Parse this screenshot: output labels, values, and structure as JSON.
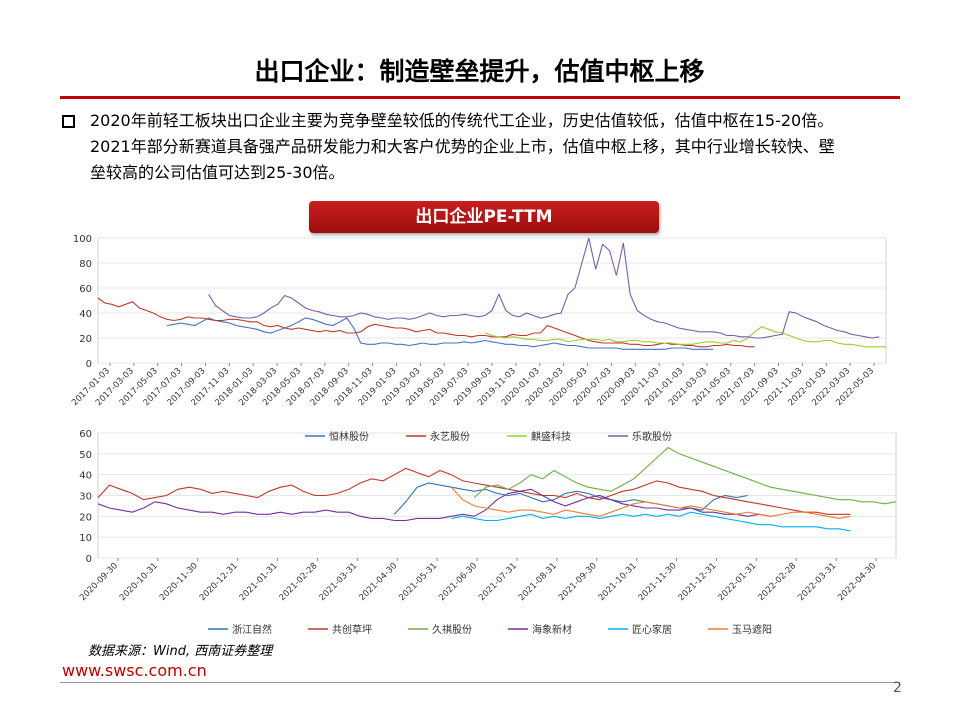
{
  "page": {
    "title": "出口企业：制造壁垒提升，估值中枢上移",
    "bullet_line1": "2020年前轻工板块出口企业主要为竞争壁垒较低的传统代工企业，历史估值较低，估值中枢在15-20倍。",
    "bullet_line2": "2021年部分新赛道具备强产品研发能力和大客户优势的企业上市，估值中枢上移，其中行业增长较快、壁",
    "bullet_line3": "垒较高的公司估值可达到25-30倍。",
    "badge": "出口企业PE-TTM",
    "source": "数据来源：Wind, 西南证券整理",
    "website": "www.swsc.com.cn",
    "page_number": "2"
  },
  "chart_data": [
    {
      "type": "line",
      "title": "",
      "ylim": [
        0,
        100
      ],
      "yticks": [
        "0",
        "20",
        "40",
        "60",
        "80",
        "100"
      ],
      "xticks": [
        "2017-01-03",
        "2017-03-03",
        "2017-05-03",
        "2017-07-03",
        "2017-09-03",
        "2017-11-03",
        "2018-01-03",
        "2018-03-03",
        "2018-05-03",
        "2018-07-03",
        "2018-09-03",
        "2018-11-03",
        "2019-01-03",
        "2019-03-03",
        "2019-05-03",
        "2019-07-03",
        "2019-09-03",
        "2019-11-03",
        "2020-01-03",
        "2020-03-03",
        "2020-05-03",
        "2020-07-03",
        "2020-09-03",
        "2020-11-03",
        "2021-01-03",
        "2021-03-03",
        "2021-05-03",
        "2021-07-03",
        "2021-09-03",
        "2021-11-03",
        "2022-01-03",
        "2022-03-03",
        "2022-05-03"
      ],
      "legend": "bottom",
      "series": [
        {
          "name": "恒林股份",
          "color": "#4472c4",
          "start": 10,
          "values": [
            30,
            31,
            32,
            31,
            30,
            33,
            36,
            34,
            33,
            32,
            30,
            29,
            28,
            27,
            25,
            24,
            26,
            28,
            30,
            33,
            36,
            35,
            33,
            31,
            30,
            33,
            36,
            28,
            16,
            15,
            15,
            16,
            16,
            15,
            15,
            14,
            15,
            16,
            15,
            15,
            16,
            16,
            16,
            17,
            16,
            17,
            18,
            17,
            16,
            15,
            15,
            14,
            14,
            13,
            14,
            15,
            16,
            15,
            14,
            14,
            13,
            12,
            12,
            12,
            12,
            12,
            11,
            11,
            11,
            11,
            11,
            11,
            11,
            12,
            12,
            12,
            11,
            11,
            11,
            11
          ]
        },
        {
          "name": "永艺股份",
          "color": "#c0392b",
          "start": 0,
          "values": [
            52,
            48,
            47,
            45,
            47,
            49,
            44,
            42,
            40,
            37,
            35,
            34,
            35,
            37,
            36,
            36,
            35,
            34,
            34,
            35,
            35,
            34,
            33,
            33,
            30,
            29,
            30,
            28,
            27,
            28,
            27,
            26,
            25,
            26,
            25,
            26,
            24,
            24,
            25,
            29,
            31,
            30,
            29,
            28,
            28,
            27,
            25,
            26,
            27,
            24,
            24,
            23,
            22,
            22,
            21,
            22,
            22,
            21,
            21,
            21,
            23,
            22,
            22,
            24,
            24,
            30,
            28,
            26,
            24,
            22,
            20,
            18,
            17,
            16,
            16,
            16,
            16,
            15,
            15,
            14,
            14,
            15,
            16,
            15,
            15,
            14,
            14,
            13,
            13,
            14,
            14,
            15,
            14,
            14,
            13,
            13
          ]
        },
        {
          "name": "麒盛科技",
          "color": "#9acd32",
          "start": 56,
          "values": [
            24,
            22,
            21,
            20,
            21,
            20,
            19,
            19,
            18,
            18,
            19,
            19,
            17,
            18,
            19,
            19,
            19,
            18,
            19,
            17,
            17,
            18,
            18,
            17,
            17,
            16,
            16,
            16,
            15,
            15,
            15,
            16,
            17,
            17,
            16,
            16,
            18,
            17,
            20,
            25,
            29,
            27,
            25,
            24,
            22,
            20,
            18,
            17,
            17,
            18,
            18,
            16,
            15,
            15,
            14,
            13,
            13,
            13,
            13
          ]
        },
        {
          "name": "乐歌股份",
          "color": "#7b5ea7",
          "start": 16,
          "values": [
            55,
            46,
            42,
            38,
            37,
            36,
            36,
            37,
            40,
            44,
            47,
            54,
            52,
            48,
            44,
            42,
            41,
            39,
            38,
            37,
            37,
            38,
            40,
            39,
            37,
            36,
            35,
            36,
            36,
            35,
            36,
            38,
            40,
            38,
            37,
            38,
            38,
            39,
            38,
            37,
            38,
            42,
            55,
            42,
            38,
            37,
            40,
            38,
            36,
            37,
            39,
            40,
            55,
            60,
            80,
            100,
            75,
            95,
            90,
            70,
            96,
            55,
            42,
            38,
            35,
            33,
            32,
            30,
            28,
            27,
            26,
            25,
            25,
            25,
            24,
            22,
            22,
            21,
            21,
            20,
            20,
            21,
            22,
            23,
            41,
            40,
            37,
            35,
            33,
            30,
            28,
            26,
            25,
            23,
            22,
            21,
            20,
            21
          ]
        }
      ]
    },
    {
      "type": "line",
      "title": "",
      "ylim": [
        0,
        60
      ],
      "yticks": [
        "0",
        "10",
        "20",
        "30",
        "40",
        "50",
        "60"
      ],
      "xticks": [
        "2020-09-30",
        "2020-10-31",
        "2020-11-30",
        "2020-12-31",
        "2021-01-31",
        "2021-02-28",
        "2021-03-31",
        "2021-04-30",
        "2021-05-31",
        "2021-06-30",
        "2021-07-31",
        "2021-08-31",
        "2021-09-30",
        "2021-10-31",
        "2021-11-30",
        "2021-12-31",
        "2022-01-31",
        "2022-02-28",
        "2022-03-31",
        "2022-04-30"
      ],
      "legend": "bottom",
      "series": [
        {
          "name": "浙江自然",
          "color": "#2e75b6",
          "start": 26,
          "values": [
            21,
            27,
            34,
            36,
            35,
            34,
            33,
            32,
            33,
            31,
            30,
            31,
            29,
            27,
            28,
            31,
            32,
            31,
            29,
            28,
            27,
            28,
            27,
            26,
            25,
            24,
            24,
            23,
            28,
            30,
            29,
            30
          ]
        },
        {
          "name": "共创草坪",
          "color": "#c0392b",
          "start": 0,
          "values": [
            29,
            35,
            33,
            31,
            28,
            29,
            30,
            33,
            34,
            33,
            31,
            32,
            31,
            30,
            29,
            32,
            34,
            35,
            32,
            30,
            30,
            31,
            33,
            36,
            38,
            37,
            40,
            43,
            41,
            39,
            42,
            40,
            37,
            36,
            35,
            34,
            33,
            32,
            31,
            30,
            30,
            29,
            31,
            29,
            28,
            30,
            32,
            33,
            35,
            37,
            36,
            34,
            33,
            32,
            30,
            29,
            28,
            27,
            26,
            25,
            24,
            23,
            22,
            22,
            21,
            21,
            21
          ]
        },
        {
          "name": "久祺股份",
          "color": "#70ad47",
          "start": 33,
          "values": [
            29,
            34,
            35,
            33,
            36,
            40,
            38,
            42,
            39,
            36,
            34,
            33,
            32,
            35,
            38,
            43,
            48,
            53,
            50,
            48,
            46,
            44,
            42,
            40,
            38,
            36,
            34,
            33,
            32,
            31,
            30,
            29,
            28,
            28,
            27,
            27,
            26,
            27
          ]
        },
        {
          "name": "海象新材",
          "color": "#7030a0",
          "start": 0,
          "values": [
            26,
            24,
            23,
            22,
            24,
            27,
            26,
            24,
            23,
            22,
            22,
            21,
            22,
            22,
            21,
            21,
            22,
            21,
            22,
            22,
            23,
            22,
            22,
            20,
            19,
            19,
            18,
            18,
            19,
            19,
            19,
            20,
            21,
            20,
            23,
            28,
            31,
            32,
            33,
            30,
            27,
            25,
            27,
            29,
            30,
            28,
            26,
            25,
            24,
            24,
            23,
            23,
            24,
            22,
            22,
            21,
            21,
            20,
            21,
            20
          ]
        },
        {
          "name": "匠心家居",
          "color": "#00b0f0",
          "start": 31,
          "values": [
            19,
            20,
            19,
            18,
            18,
            19,
            20,
            21,
            19,
            20,
            19,
            20,
            20,
            19,
            20,
            21,
            20,
            21,
            20,
            21,
            20,
            22,
            21,
            20,
            19,
            18,
            17,
            16,
            16,
            15,
            15,
            15,
            15,
            14,
            14,
            13
          ]
        },
        {
          "name": "玉马遮阳",
          "color": "#ed7d31",
          "start": 31,
          "values": [
            34,
            28,
            25,
            24,
            23,
            22,
            23,
            23,
            22,
            21,
            23,
            22,
            21,
            20,
            22,
            24,
            26,
            27,
            26,
            25,
            24,
            25,
            24,
            23,
            22,
            21,
            22,
            21,
            20,
            21,
            22,
            22,
            21,
            20,
            19,
            20
          ]
        }
      ]
    }
  ]
}
